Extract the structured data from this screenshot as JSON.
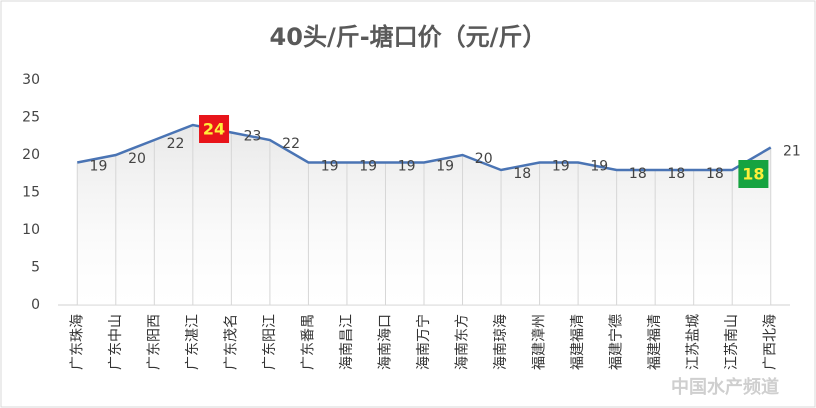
{
  "chart_data": {
    "type": "line",
    "title": "40头/斤-塘口价（元/斤）",
    "categories": [
      "广东珠海",
      "广东中山",
      "广东阳西",
      "广东湛江",
      "广东茂名",
      "广东阳江",
      "广东番禺",
      "海南昌江",
      "海南海口",
      "海南万宁",
      "海南东方",
      "海南琼海",
      "福建漳州",
      "福建福清",
      "福建宁德",
      "福建福清",
      "江苏盐城",
      "江苏南山",
      "广西北海"
    ],
    "series": [
      {
        "name": "塘口价",
        "color": "#4a74b4",
        "values": [
          19,
          20,
          22,
          24,
          23,
          22,
          19,
          19,
          19,
          19,
          20,
          18,
          19,
          19,
          18,
          18,
          18,
          18,
          21
        ]
      }
    ],
    "label_fills": [
      null,
      null,
      null,
      "#e8141a",
      null,
      null,
      null,
      null,
      null,
      null,
      null,
      null,
      null,
      null,
      null,
      null,
      null,
      "#16a340",
      null
    ],
    "label_text_colors": [
      null,
      null,
      null,
      "#ffef3a",
      null,
      null,
      null,
      null,
      null,
      null,
      null,
      null,
      null,
      null,
      null,
      null,
      null,
      "#ffef3a",
      null
    ],
    "ylim": [
      0,
      30
    ],
    "yticks": [
      0,
      5,
      10,
      15,
      20,
      25,
      30
    ],
    "grid": true,
    "watermark": "中国水产频道"
  }
}
